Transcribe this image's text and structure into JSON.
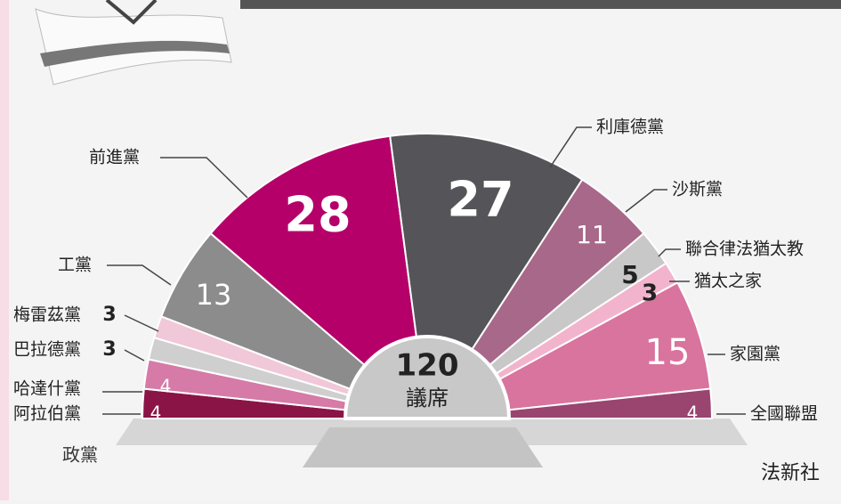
{
  "chart_data": {
    "type": "parliament",
    "categories": [
      "阿拉伯黨",
      "哈達什黨",
      "巴拉德黨",
      "梅雷茲黨",
      "工黨",
      "前進黨",
      "利庫德黨",
      "沙斯黨",
      "聯合律法猶太教",
      "猶太之家",
      "家園黨",
      "全國聯盟"
    ],
    "values": [
      4,
      4,
      3,
      3,
      13,
      28,
      27,
      11,
      5,
      3,
      15,
      4
    ],
    "colors": [
      "#8a1446",
      "#d67aa8",
      "#cfcfcf",
      "#f0c8d8",
      "#8c8c8c",
      "#b5006a",
      "#555559",
      "#a8688a",
      "#c8c8c8",
      "#f2b4cc",
      "#d8749e",
      "#9a4470"
    ],
    "center_value": 120,
    "center_label": "議席",
    "axis_label": "政黨",
    "source": "法新社"
  }
}
